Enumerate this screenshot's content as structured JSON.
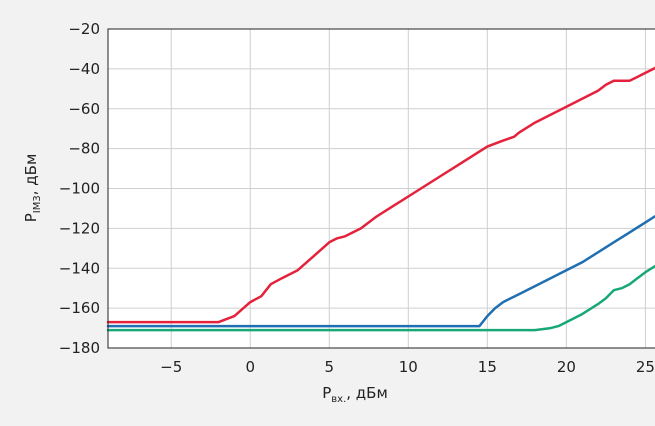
{
  "chart_data": {
    "type": "line",
    "title": "",
    "xlabel": "P",
    "xlabel_sub": "вх.",
    "xlabel_suffix": ", дБм",
    "ylabel": "P",
    "ylabel_sub": "IM3",
    "ylabel_suffix": ", дБм",
    "xlim": [
      -9,
      27
    ],
    "ylim": [
      -180,
      -20
    ],
    "xticks": [
      -5,
      0,
      5,
      10,
      15,
      20,
      25
    ],
    "xtick_labels": [
      "−5",
      "0",
      "5",
      "10",
      "15",
      "20",
      "25"
    ],
    "yticks": [
      -20,
      -40,
      -60,
      -80,
      -100,
      -120,
      -140,
      -160,
      -180
    ],
    "ytick_labels": [
      "−20",
      "−40",
      "−60",
      "−80",
      "−100",
      "−120",
      "−140",
      "−160",
      "−180"
    ],
    "grid": true,
    "series": [
      {
        "color": "#e5223c",
        "x": [
          -9,
          -2,
          -1,
          0,
          0.7,
          1.3,
          2,
          3,
          4,
          5,
          5.5,
          6,
          7,
          8,
          9,
          10,
          11,
          12,
          13,
          14,
          15,
          16,
          16.7,
          17,
          18,
          19,
          20,
          21,
          22,
          22.5,
          23,
          23.5,
          24,
          25,
          26,
          27
        ],
        "y": [
          -167,
          -167,
          -164,
          -157,
          -154,
          -148,
          -145,
          -141,
          -134,
          -127,
          -125,
          -124,
          -120,
          -114,
          -109,
          -104,
          -99,
          -94,
          -89,
          -84,
          -79,
          -76,
          -74,
          -72,
          -67,
          -63,
          -59,
          -55,
          -51,
          -48,
          -46,
          -46,
          -46,
          -42,
          -38,
          -35
        ]
      },
      {
        "color": "#1f6fb2",
        "x": [
          -9,
          14.5,
          15,
          15.5,
          16,
          17,
          18,
          19,
          20,
          21,
          22,
          23,
          24,
          25,
          26,
          27
        ],
        "y": [
          -169,
          -169,
          -164,
          -160,
          -157,
          -153,
          -149,
          -145,
          -141,
          -137,
          -132,
          -127,
          -122,
          -117,
          -112,
          -107
        ]
      },
      {
        "color": "#18a878",
        "x": [
          -9,
          18,
          19,
          19.5,
          20,
          21,
          22,
          22.5,
          23,
          23.5,
          24,
          25,
          26,
          27
        ],
        "y": [
          -171,
          -171,
          -170,
          -169,
          -167,
          -163,
          -158,
          -155,
          -151,
          -150,
          -148,
          -142,
          -137,
          -132
        ]
      }
    ]
  }
}
